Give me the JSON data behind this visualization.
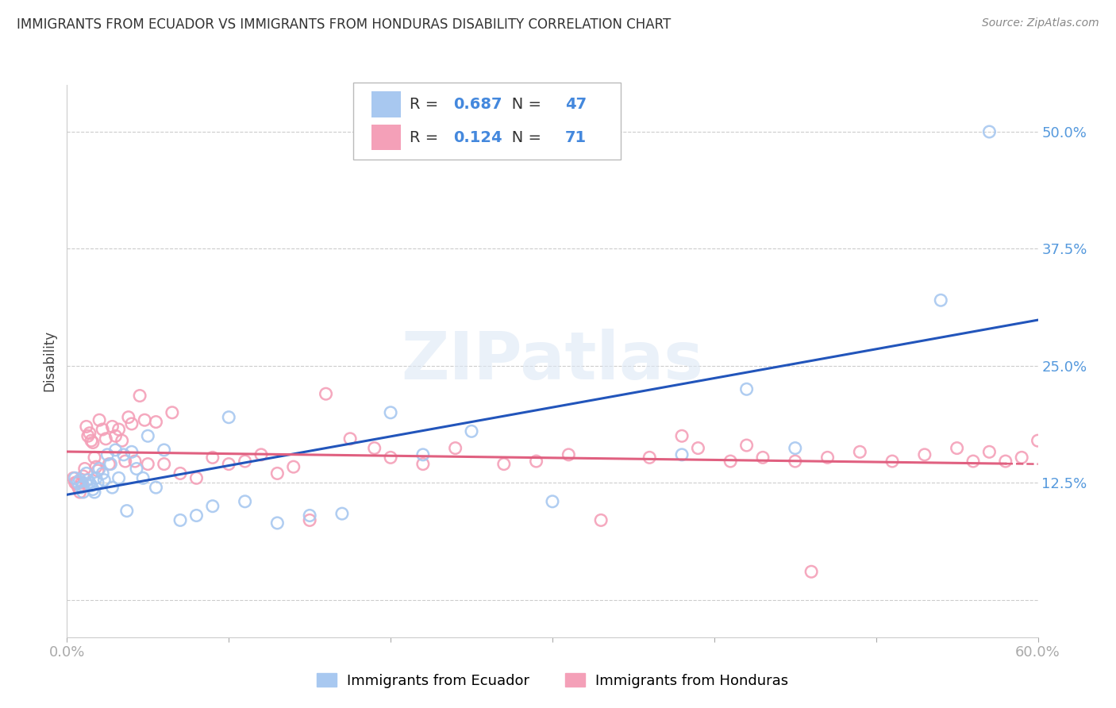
{
  "title": "IMMIGRANTS FROM ECUADOR VS IMMIGRANTS FROM HONDURAS DISABILITY CORRELATION CHART",
  "source": "Source: ZipAtlas.com",
  "ylabel": "Disability",
  "xlim": [
    0.0,
    0.6
  ],
  "ylim": [
    -0.04,
    0.55
  ],
  "yticks": [
    0.0,
    0.125,
    0.25,
    0.375,
    0.5
  ],
  "ytick_labels": [
    "",
    "12.5%",
    "25.0%",
    "37.5%",
    "50.0%"
  ],
  "xticks": [
    0.0,
    0.1,
    0.2,
    0.3,
    0.4,
    0.5,
    0.6
  ],
  "xtick_labels": [
    "0.0%",
    "",
    "",
    "",
    "",
    "",
    "60.0%"
  ],
  "ecuador_color": "#a8c8f0",
  "honduras_color": "#f4a0b8",
  "ecuador_line_color": "#2255bb",
  "honduras_line_color": "#e06080",
  "R_ecuador": 0.687,
  "N_ecuador": 47,
  "R_honduras": 0.124,
  "N_honduras": 71,
  "ecuador_x": [
    0.005,
    0.007,
    0.008,
    0.009,
    0.01,
    0.01,
    0.012,
    0.013,
    0.014,
    0.015,
    0.016,
    0.017,
    0.018,
    0.019,
    0.02,
    0.022,
    0.023,
    0.025,
    0.027,
    0.028,
    0.03,
    0.032,
    0.035,
    0.037,
    0.04,
    0.043,
    0.047,
    0.05,
    0.055,
    0.06,
    0.07,
    0.08,
    0.09,
    0.1,
    0.11,
    0.13,
    0.15,
    0.17,
    0.2,
    0.22,
    0.25,
    0.3,
    0.38,
    0.42,
    0.45,
    0.54,
    0.57
  ],
  "ecuador_y": [
    0.13,
    0.125,
    0.128,
    0.12,
    0.115,
    0.122,
    0.135,
    0.128,
    0.125,
    0.122,
    0.118,
    0.115,
    0.13,
    0.125,
    0.14,
    0.135,
    0.128,
    0.155,
    0.145,
    0.12,
    0.16,
    0.13,
    0.155,
    0.095,
    0.158,
    0.14,
    0.13,
    0.175,
    0.12,
    0.16,
    0.085,
    0.09,
    0.1,
    0.195,
    0.105,
    0.082,
    0.09,
    0.092,
    0.2,
    0.155,
    0.18,
    0.105,
    0.155,
    0.225,
    0.162,
    0.32,
    0.5
  ],
  "honduras_x": [
    0.004,
    0.005,
    0.006,
    0.007,
    0.008,
    0.009,
    0.01,
    0.011,
    0.012,
    0.013,
    0.014,
    0.015,
    0.016,
    0.017,
    0.018,
    0.019,
    0.02,
    0.022,
    0.024,
    0.026,
    0.028,
    0.03,
    0.032,
    0.034,
    0.036,
    0.038,
    0.04,
    0.042,
    0.045,
    0.048,
    0.05,
    0.055,
    0.06,
    0.065,
    0.07,
    0.08,
    0.09,
    0.1,
    0.11,
    0.12,
    0.13,
    0.14,
    0.15,
    0.16,
    0.175,
    0.19,
    0.2,
    0.22,
    0.24,
    0.27,
    0.29,
    0.31,
    0.33,
    0.36,
    0.39,
    0.41,
    0.43,
    0.45,
    0.47,
    0.49,
    0.51,
    0.53,
    0.55,
    0.56,
    0.57,
    0.58,
    0.59,
    0.6,
    0.38,
    0.42,
    0.46
  ],
  "honduras_y": [
    0.13,
    0.125,
    0.125,
    0.12,
    0.115,
    0.125,
    0.132,
    0.14,
    0.185,
    0.175,
    0.178,
    0.17,
    0.168,
    0.152,
    0.142,
    0.138,
    0.192,
    0.182,
    0.172,
    0.145,
    0.185,
    0.175,
    0.182,
    0.17,
    0.148,
    0.195,
    0.188,
    0.148,
    0.218,
    0.192,
    0.145,
    0.19,
    0.145,
    0.2,
    0.135,
    0.13,
    0.152,
    0.145,
    0.148,
    0.155,
    0.135,
    0.142,
    0.085,
    0.22,
    0.172,
    0.162,
    0.152,
    0.145,
    0.162,
    0.145,
    0.148,
    0.155,
    0.085,
    0.152,
    0.162,
    0.148,
    0.152,
    0.148,
    0.152,
    0.158,
    0.148,
    0.155,
    0.162,
    0.148,
    0.158,
    0.148,
    0.152,
    0.17,
    0.175,
    0.165,
    0.03
  ]
}
